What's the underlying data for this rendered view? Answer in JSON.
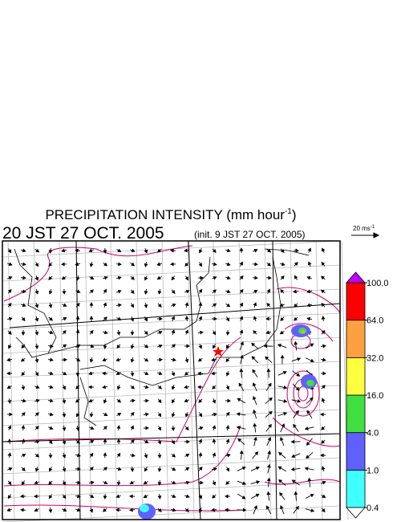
{
  "header": {
    "title": "PRECIPITATION INTENSITY (mm hour",
    "title_sup": "-1",
    "title_end": ")",
    "time": "20 JST 27 OCT. 2005",
    "init": "(init. 9 JST 27 OCT. 2005)"
  },
  "vector_scale": {
    "label": "20 ms",
    "label_sup": "-1"
  },
  "colorbar": {
    "levels": [
      0.4,
      {
        "value": 1,
        "label": "1.0"
      },
      {
        "value": 4,
        "label": "4.0"
      },
      {
        "value": 16,
        "label": "16.0"
      },
      {
        "value": 32,
        "label": "32.0"
      },
      {
        "value": 64,
        "label": "64.0"
      },
      {
        "value": 100,
        "label": "100.0"
      }
    ],
    "colors": [
      "#40ffff",
      "#6060ff",
      "#40e040",
      "#ffff40",
      "#ffa040",
      "#ff0000"
    ],
    "over_color": "#c000ff"
  }
}
